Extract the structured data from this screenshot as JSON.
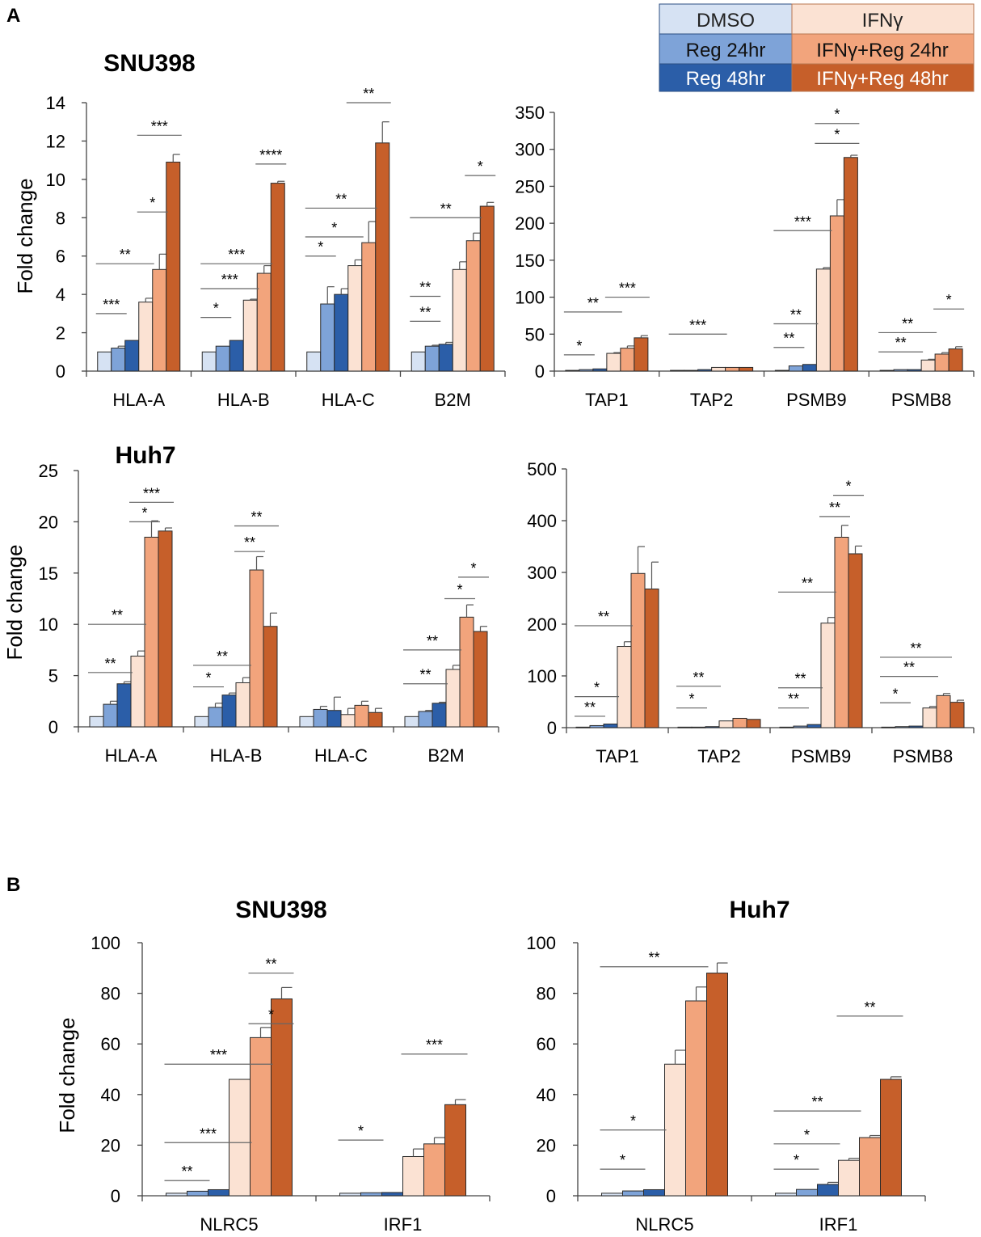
{
  "panel_labels": [
    "A",
    "B"
  ],
  "legend": {
    "items": [
      {
        "label": "DMSO",
        "color": "#d6e2f3"
      },
      {
        "label": "Reg 24hr",
        "color": "#7ea3d8"
      },
      {
        "label": "Reg 48hr",
        "color": "#2b5ea8"
      },
      {
        "label": "IFNγ",
        "color": "#fbe2d3"
      },
      {
        "label": "IFNγ+Reg 24hr",
        "color": "#f2a47c"
      },
      {
        "label": "IFNγ+Reg 48hr",
        "color": "#c65f2a"
      }
    ]
  },
  "chart_data": [
    {
      "type": "bar",
      "id": "a1",
      "title": "SNU398",
      "xlabel": "",
      "ylabel": "Fold change",
      "ylim": [
        0,
        14
      ],
      "yticks": [
        0,
        2,
        4,
        6,
        8,
        10,
        12,
        14
      ],
      "categories": [
        "HLA-A",
        "HLA-B",
        "HLA-C",
        "B2M"
      ],
      "series": [
        {
          "name": "DMSO",
          "values": [
            1,
            1,
            1,
            1
          ],
          "errors": [
            0,
            0,
            0,
            0
          ]
        },
        {
          "name": "Reg 24hr",
          "values": [
            1.2,
            1.3,
            3.5,
            1.3
          ],
          "errors": [
            0.1,
            0,
            0.9,
            0.05
          ]
        },
        {
          "name": "Reg 48hr",
          "values": [
            1.6,
            1.6,
            4.0,
            1.4
          ],
          "errors": [
            0,
            0,
            0.3,
            0.1
          ]
        },
        {
          "name": "IFNγ",
          "values": [
            3.6,
            3.7,
            5.5,
            5.3
          ],
          "errors": [
            0.2,
            0.05,
            0.3,
            0.4
          ]
        },
        {
          "name": "IFNγ+Reg 24hr",
          "values": [
            5.3,
            5.1,
            6.7,
            6.8
          ],
          "errors": [
            0.8,
            0.4,
            1.1,
            0.4
          ]
        },
        {
          "name": "IFNγ+Reg 48hr",
          "values": [
            10.9,
            9.8,
            11.9,
            8.6
          ],
          "errors": [
            0.4,
            0.1,
            1.1,
            0.2
          ]
        }
      ],
      "sig": [
        {
          "cat": 0,
          "from": 0,
          "to": 1,
          "y": 3.0,
          "label": "***"
        },
        {
          "cat": 0,
          "from": 0,
          "to": 3,
          "y": 5.6,
          "label": "**"
        },
        {
          "cat": 0,
          "from": 3,
          "to": 4,
          "y": 8.3,
          "label": "*"
        },
        {
          "cat": 0,
          "from": 3,
          "to": 5,
          "y": 12.3,
          "label": "***"
        },
        {
          "cat": 1,
          "from": 0,
          "to": 1,
          "y": 2.8,
          "label": "*"
        },
        {
          "cat": 1,
          "from": 0,
          "to": 3,
          "y": 4.3,
          "label": "***"
        },
        {
          "cat": 1,
          "from": 0,
          "to": 4,
          "y": 5.6,
          "label": "***"
        },
        {
          "cat": 1,
          "from": 4,
          "to": 5,
          "y": 10.8,
          "label": "****"
        },
        {
          "cat": 2,
          "from": 0,
          "to": 1,
          "y": 6.0,
          "label": "*"
        },
        {
          "cat": 2,
          "from": 0,
          "to": 3,
          "y": 7.0,
          "label": "*"
        },
        {
          "cat": 2,
          "from": 0,
          "to": 4,
          "y": 8.5,
          "label": "**"
        },
        {
          "cat": 2,
          "from": 3,
          "to": 5,
          "y": 14.0,
          "label": "**"
        },
        {
          "cat": 3,
          "from": 0,
          "to": 1,
          "y": 2.6,
          "label": "**"
        },
        {
          "cat": 3,
          "from": 0,
          "to": 1,
          "y": 3.9,
          "label": "**"
        },
        {
          "cat": 3,
          "from": 0,
          "to": 4,
          "y": 8.0,
          "label": "**"
        },
        {
          "cat": 3,
          "from": 4,
          "to": 5,
          "y": 10.2,
          "label": "*"
        }
      ]
    },
    {
      "type": "bar",
      "id": "a2",
      "title": "",
      "xlabel": "",
      "ylabel": "",
      "ylim": [
        0,
        350
      ],
      "yticks": [
        0,
        50,
        100,
        150,
        200,
        250,
        300,
        350
      ],
      "categories": [
        "TAP1",
        "TAP2",
        "PSMB9",
        "PSMB8"
      ],
      "series": [
        {
          "name": "DMSO",
          "values": [
            1,
            1,
            1,
            1
          ],
          "errors": [
            0,
            0,
            0,
            0
          ]
        },
        {
          "name": "Reg 24hr",
          "values": [
            2,
            1,
            7,
            2
          ],
          "errors": [
            0,
            0,
            0,
            0
          ]
        },
        {
          "name": "Reg 48hr",
          "values": [
            3,
            2,
            9,
            2
          ],
          "errors": [
            0,
            0,
            0,
            0
          ]
        },
        {
          "name": "IFNγ",
          "values": [
            24,
            5,
            138,
            15
          ],
          "errors": [
            1,
            0,
            2,
            1
          ]
        },
        {
          "name": "IFNγ+Reg 24hr",
          "values": [
            31,
            5,
            210,
            23
          ],
          "errors": [
            3,
            0,
            22,
            2
          ]
        },
        {
          "name": "IFNγ+Reg 48hr",
          "values": [
            45,
            5,
            289,
            30
          ],
          "errors": [
            3,
            0,
            3,
            3
          ]
        }
      ],
      "sig": [
        {
          "cat": 0,
          "from": 0,
          "to": 1,
          "y": 22,
          "label": "*"
        },
        {
          "cat": 0,
          "from": 0,
          "to": 3,
          "y": 80,
          "label": "**"
        },
        {
          "cat": 0,
          "from": 3,
          "to": 5,
          "y": 100,
          "label": "***"
        },
        {
          "cat": 1,
          "from": 0,
          "to": 3,
          "y": 50,
          "label": "***"
        },
        {
          "cat": 2,
          "from": 0,
          "to": 1,
          "y": 32,
          "label": "**"
        },
        {
          "cat": 2,
          "from": 0,
          "to": 2,
          "y": 64,
          "label": "**"
        },
        {
          "cat": 2,
          "from": 0,
          "to": 3,
          "y": 190,
          "label": "***"
        },
        {
          "cat": 2,
          "from": 3,
          "to": 5,
          "y": 308,
          "label": "*"
        },
        {
          "cat": 2,
          "from": 3,
          "to": 5,
          "y": 335,
          "label": "*"
        },
        {
          "cat": 3,
          "from": 0,
          "to": 2,
          "y": 26,
          "label": "**"
        },
        {
          "cat": 3,
          "from": 0,
          "to": 3,
          "y": 52,
          "label": "**"
        },
        {
          "cat": 3,
          "from": 4,
          "to": 5,
          "y": 84,
          "label": "*"
        }
      ]
    },
    {
      "type": "bar",
      "id": "a3",
      "title": "Huh7",
      "xlabel": "",
      "ylabel": "Fold change",
      "ylim": [
        0,
        25
      ],
      "yticks": [
        0,
        5,
        10,
        15,
        20,
        25
      ],
      "categories": [
        "HLA-A",
        "HLA-B",
        "HLA-C",
        "B2M"
      ],
      "series": [
        {
          "name": "DMSO",
          "values": [
            1,
            1,
            1,
            1
          ],
          "errors": [
            0,
            0,
            0,
            0
          ]
        },
        {
          "name": "Reg 24hr",
          "values": [
            2.2,
            1.9,
            1.7,
            1.5
          ],
          "errors": [
            0.3,
            0.4,
            0.3,
            0.1
          ]
        },
        {
          "name": "Reg 48hr",
          "values": [
            4.2,
            3.1,
            1.6,
            2.3
          ],
          "errors": [
            0.2,
            0.2,
            1.3,
            0.1
          ]
        },
        {
          "name": "IFNγ",
          "values": [
            6.9,
            4.3,
            1.2,
            5.6
          ],
          "errors": [
            0.5,
            0.5,
            0.6,
            0.4
          ]
        },
        {
          "name": "IFNγ+Reg 24hr",
          "values": [
            18.5,
            15.3,
            2.1,
            10.7
          ],
          "errors": [
            1.6,
            1.3,
            0.4,
            1.2
          ]
        },
        {
          "name": "IFNγ+Reg 48hr",
          "values": [
            19.1,
            9.8,
            1.4,
            9.3
          ],
          "errors": [
            0.3,
            1.3,
            0.4,
            0.5
          ]
        }
      ],
      "sig": [
        {
          "cat": 0,
          "from": 0,
          "to": 2,
          "y": 5.3,
          "label": "**"
        },
        {
          "cat": 0,
          "from": 0,
          "to": 3,
          "y": 10.0,
          "label": "**"
        },
        {
          "cat": 0,
          "from": 3,
          "to": 4,
          "y": 20.0,
          "label": "*"
        },
        {
          "cat": 0,
          "from": 3,
          "to": 5,
          "y": 21.9,
          "label": "***"
        },
        {
          "cat": 1,
          "from": 0,
          "to": 1,
          "y": 3.9,
          "label": "*"
        },
        {
          "cat": 1,
          "from": 0,
          "to": 3,
          "y": 6.0,
          "label": "**"
        },
        {
          "cat": 1,
          "from": 3,
          "to": 4,
          "y": 17.1,
          "label": "**"
        },
        {
          "cat": 1,
          "from": 3,
          "to": 5,
          "y": 19.6,
          "label": "**"
        },
        {
          "cat": 3,
          "from": 0,
          "to": 2,
          "y": 4.2,
          "label": "**"
        },
        {
          "cat": 3,
          "from": 0,
          "to": 3,
          "y": 7.5,
          "label": "**"
        },
        {
          "cat": 3,
          "from": 3,
          "to": 4,
          "y": 12.5,
          "label": "*"
        },
        {
          "cat": 3,
          "from": 4,
          "to": 5,
          "y": 14.6,
          "label": "*"
        }
      ]
    },
    {
      "type": "bar",
      "id": "a4",
      "title": "",
      "xlabel": "",
      "ylabel": "",
      "ylim": [
        0,
        500
      ],
      "yticks": [
        0,
        100,
        200,
        300,
        400,
        500
      ],
      "categories": [
        "TAP1",
        "TAP2",
        "PSMB9",
        "PSMB8"
      ],
      "series": [
        {
          "name": "DMSO",
          "values": [
            1,
            1,
            1,
            1
          ],
          "errors": [
            0,
            0,
            0,
            0
          ]
        },
        {
          "name": "Reg 24hr",
          "values": [
            4,
            1,
            3,
            2
          ],
          "errors": [
            0,
            0,
            0,
            0
          ]
        },
        {
          "name": "Reg 48hr",
          "values": [
            7,
            2,
            6,
            3
          ],
          "errors": [
            0,
            0,
            0,
            0
          ]
        },
        {
          "name": "IFNγ",
          "values": [
            157,
            13,
            202,
            38
          ],
          "errors": [
            9,
            0,
            11,
            3
          ]
        },
        {
          "name": "IFNγ+Reg 24hr",
          "values": [
            298,
            18,
            368,
            62
          ],
          "errors": [
            52,
            0,
            23,
            4
          ]
        },
        {
          "name": "IFNγ+Reg 48hr",
          "values": [
            268,
            16,
            336,
            49
          ],
          "errors": [
            52,
            0,
            15,
            4
          ]
        }
      ],
      "sig": [
        {
          "cat": 0,
          "from": 0,
          "to": 1,
          "y": 22,
          "label": "**"
        },
        {
          "cat": 0,
          "from": 0,
          "to": 2,
          "y": 60,
          "label": "*"
        },
        {
          "cat": 0,
          "from": 0,
          "to": 3,
          "y": 197,
          "label": "**"
        },
        {
          "cat": 1,
          "from": 0,
          "to": 1,
          "y": 38,
          "label": "*"
        },
        {
          "cat": 1,
          "from": 0,
          "to": 2,
          "y": 80,
          "label": "**"
        },
        {
          "cat": 2,
          "from": 0,
          "to": 1,
          "y": 38,
          "label": "**"
        },
        {
          "cat": 2,
          "from": 0,
          "to": 2,
          "y": 77,
          "label": "**"
        },
        {
          "cat": 2,
          "from": 0,
          "to": 3,
          "y": 262,
          "label": "**"
        },
        {
          "cat": 2,
          "from": 3,
          "to": 4,
          "y": 408,
          "label": "**"
        },
        {
          "cat": 2,
          "from": 4,
          "to": 5,
          "y": 449,
          "label": "*"
        },
        {
          "cat": 3,
          "from": 0,
          "to": 1,
          "y": 48,
          "label": "*"
        },
        {
          "cat": 3,
          "from": 0,
          "to": 3,
          "y": 99,
          "label": "**"
        },
        {
          "cat": 3,
          "from": 0,
          "to": 4,
          "y": 136,
          "label": "**"
        }
      ]
    },
    {
      "type": "bar",
      "id": "b1",
      "title": "SNU398",
      "xlabel": "",
      "ylabel": "Fold change",
      "ylim": [
        0,
        100
      ],
      "yticks": [
        0,
        20,
        40,
        60,
        80,
        100
      ],
      "categories": [
        "NLRC5",
        "IRF1"
      ],
      "series": [
        {
          "name": "DMSO",
          "values": [
            1,
            1
          ],
          "errors": [
            0,
            0
          ]
        },
        {
          "name": "Reg 24hr",
          "values": [
            1.8,
            1.2
          ],
          "errors": [
            0,
            0
          ]
        },
        {
          "name": "Reg 48hr",
          "values": [
            2.4,
            1.3
          ],
          "errors": [
            0,
            0
          ]
        },
        {
          "name": "IFNγ",
          "values": [
            46,
            15.5
          ],
          "errors": [
            0,
            3
          ]
        },
        {
          "name": "IFNγ+Reg 24hr",
          "values": [
            62.5,
            20.5
          ],
          "errors": [
            4,
            2.5
          ]
        },
        {
          "name": "IFNγ+Reg 48hr",
          "values": [
            77.8,
            36
          ],
          "errors": [
            4.5,
            2
          ]
        }
      ],
      "sig": [
        {
          "cat": 0,
          "from": 0,
          "to": 1,
          "y": 6,
          "label": "**"
        },
        {
          "cat": 0,
          "from": 0,
          "to": 3,
          "y": 21,
          "label": "***"
        },
        {
          "cat": 0,
          "from": 0,
          "to": 4,
          "y": 52,
          "label": "***"
        },
        {
          "cat": 0,
          "from": 4,
          "to": 5,
          "y": 68,
          "label": "*"
        },
        {
          "cat": 0,
          "from": 4,
          "to": 5,
          "y": 88,
          "label": "**"
        },
        {
          "cat": 1,
          "from": 0,
          "to": 1,
          "y": 22,
          "label": "*"
        },
        {
          "cat": 1,
          "from": 3,
          "to": 5,
          "y": 56,
          "label": "***"
        }
      ]
    },
    {
      "type": "bar",
      "id": "b2",
      "title": "Huh7",
      "xlabel": "",
      "ylabel": "",
      "ylim": [
        0,
        100
      ],
      "yticks": [
        0,
        20,
        40,
        60,
        80,
        100
      ],
      "categories": [
        "NLRC5",
        "IRF1"
      ],
      "series": [
        {
          "name": "DMSO",
          "values": [
            1,
            1
          ],
          "errors": [
            0,
            0
          ]
        },
        {
          "name": "Reg 24hr",
          "values": [
            1.9,
            2.5
          ],
          "errors": [
            0,
            0
          ]
        },
        {
          "name": "Reg 48hr",
          "values": [
            2.4,
            4.5
          ],
          "errors": [
            0,
            0.8
          ]
        },
        {
          "name": "IFNγ",
          "values": [
            52,
            14
          ],
          "errors": [
            5.5,
            0.8
          ]
        },
        {
          "name": "IFNγ+Reg 24hr",
          "values": [
            77,
            23
          ],
          "errors": [
            5.5,
            0.8
          ]
        },
        {
          "name": "IFNγ+Reg 48hr",
          "values": [
            88,
            46
          ],
          "errors": [
            4,
            1
          ]
        }
      ],
      "sig": [
        {
          "cat": 0,
          "from": 0,
          "to": 1,
          "y": 10.5,
          "label": "*"
        },
        {
          "cat": 0,
          "from": 0,
          "to": 2,
          "y": 26,
          "label": "*"
        },
        {
          "cat": 0,
          "from": 0,
          "to": 4,
          "y": 90.5,
          "label": "**"
        },
        {
          "cat": 1,
          "from": 0,
          "to": 1,
          "y": 10.5,
          "label": "*"
        },
        {
          "cat": 1,
          "from": 0,
          "to": 2,
          "y": 20.5,
          "label": "*"
        },
        {
          "cat": 1,
          "from": 0,
          "to": 3,
          "y": 33.5,
          "label": "**"
        },
        {
          "cat": 1,
          "from": 3,
          "to": 5,
          "y": 71,
          "label": "**"
        }
      ]
    }
  ]
}
